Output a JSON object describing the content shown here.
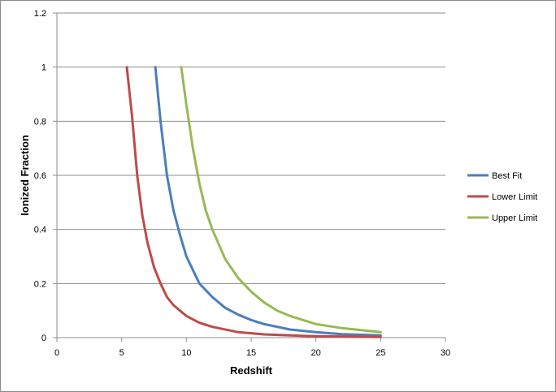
{
  "chart_data": {
    "type": "line",
    "title": "",
    "xlabel": "Redshift",
    "ylabel": "Ionized Fraction",
    "xlim": [
      0,
      30
    ],
    "ylim": [
      0,
      1.2
    ],
    "x_ticks": [
      "0",
      "5",
      "10",
      "15",
      "20",
      "25",
      "30"
    ],
    "y_ticks": [
      "0",
      "0.2",
      "0.4",
      "0.6",
      "0.8",
      "1",
      "1.2"
    ],
    "grid": "horizontal",
    "legend_position": "right",
    "series": [
      {
        "name": "Best Fit",
        "color": "#4a7ebb",
        "x": [
          7.6,
          8.0,
          8.5,
          9.0,
          9.5,
          10.0,
          11.0,
          12.0,
          13.0,
          14.0,
          15.0,
          16.0,
          18.0,
          20.0,
          22.0,
          25.0
        ],
        "y": [
          1.0,
          0.8,
          0.6,
          0.47,
          0.38,
          0.3,
          0.2,
          0.15,
          0.11,
          0.085,
          0.065,
          0.05,
          0.03,
          0.02,
          0.013,
          0.008
        ]
      },
      {
        "name": "Lower Limit",
        "color": "#be4b48",
        "x": [
          5.4,
          5.8,
          6.2,
          6.6,
          7.0,
          7.5,
          8.0,
          8.5,
          9.0,
          10.0,
          11.0,
          12.0,
          14.0,
          16.0,
          18.0,
          20.0,
          25.0
        ],
        "y": [
          1.0,
          0.82,
          0.6,
          0.45,
          0.35,
          0.26,
          0.2,
          0.15,
          0.12,
          0.08,
          0.055,
          0.04,
          0.02,
          0.012,
          0.008,
          0.005,
          0.002
        ]
      },
      {
        "name": "Upper Limit",
        "color": "#98b954",
        "x": [
          9.6,
          10.0,
          10.5,
          11.0,
          11.5,
          12.0,
          13.0,
          14.0,
          15.0,
          16.0,
          17.0,
          18.0,
          20.0,
          22.0,
          25.0
        ],
        "y": [
          1.0,
          0.86,
          0.7,
          0.57,
          0.47,
          0.4,
          0.29,
          0.22,
          0.17,
          0.13,
          0.1,
          0.08,
          0.05,
          0.035,
          0.02
        ]
      }
    ]
  }
}
